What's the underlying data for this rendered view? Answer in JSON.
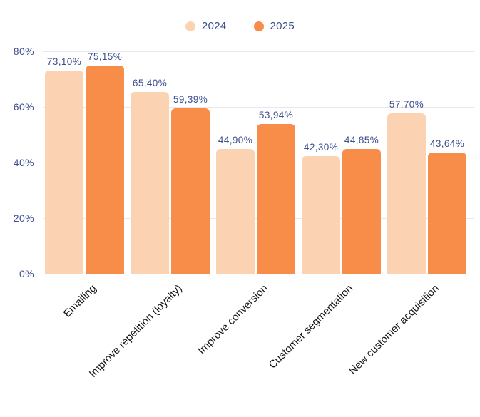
{
  "chart_data": {
    "type": "bar",
    "title": "",
    "xlabel": "",
    "ylabel": "",
    "ylim": [
      0,
      80
    ],
    "grid": true,
    "legend_position": "top-center",
    "yticks_display": [
      "80%",
      "60%",
      "40%",
      "20%",
      "0%"
    ],
    "categories": [
      "Emailing",
      "Improve repetition (loyalty)",
      "Improve conversion",
      "Customer segmentation",
      "New customer acquisition"
    ],
    "series": [
      {
        "name": "2024",
        "color": "#fbd3b3",
        "values": [
          73.1,
          65.4,
          44.9,
          42.3,
          57.7
        ],
        "value_labels": [
          "73,10%",
          "65,40%",
          "44,90%",
          "42,30%",
          "57,70%"
        ]
      },
      {
        "name": "2025",
        "color": "#f88d4a",
        "values": [
          75.15,
          59.39,
          53.94,
          44.85,
          43.64
        ],
        "value_labels": [
          "75,15%",
          "59,39%",
          "53,94%",
          "44,85%",
          "43,64%"
        ]
      }
    ],
    "colors": {
      "grid": "#e7e7ee",
      "tick_label": "#3d4e8e",
      "value_label": "#3d4e8e",
      "category_label": "#141414"
    }
  }
}
